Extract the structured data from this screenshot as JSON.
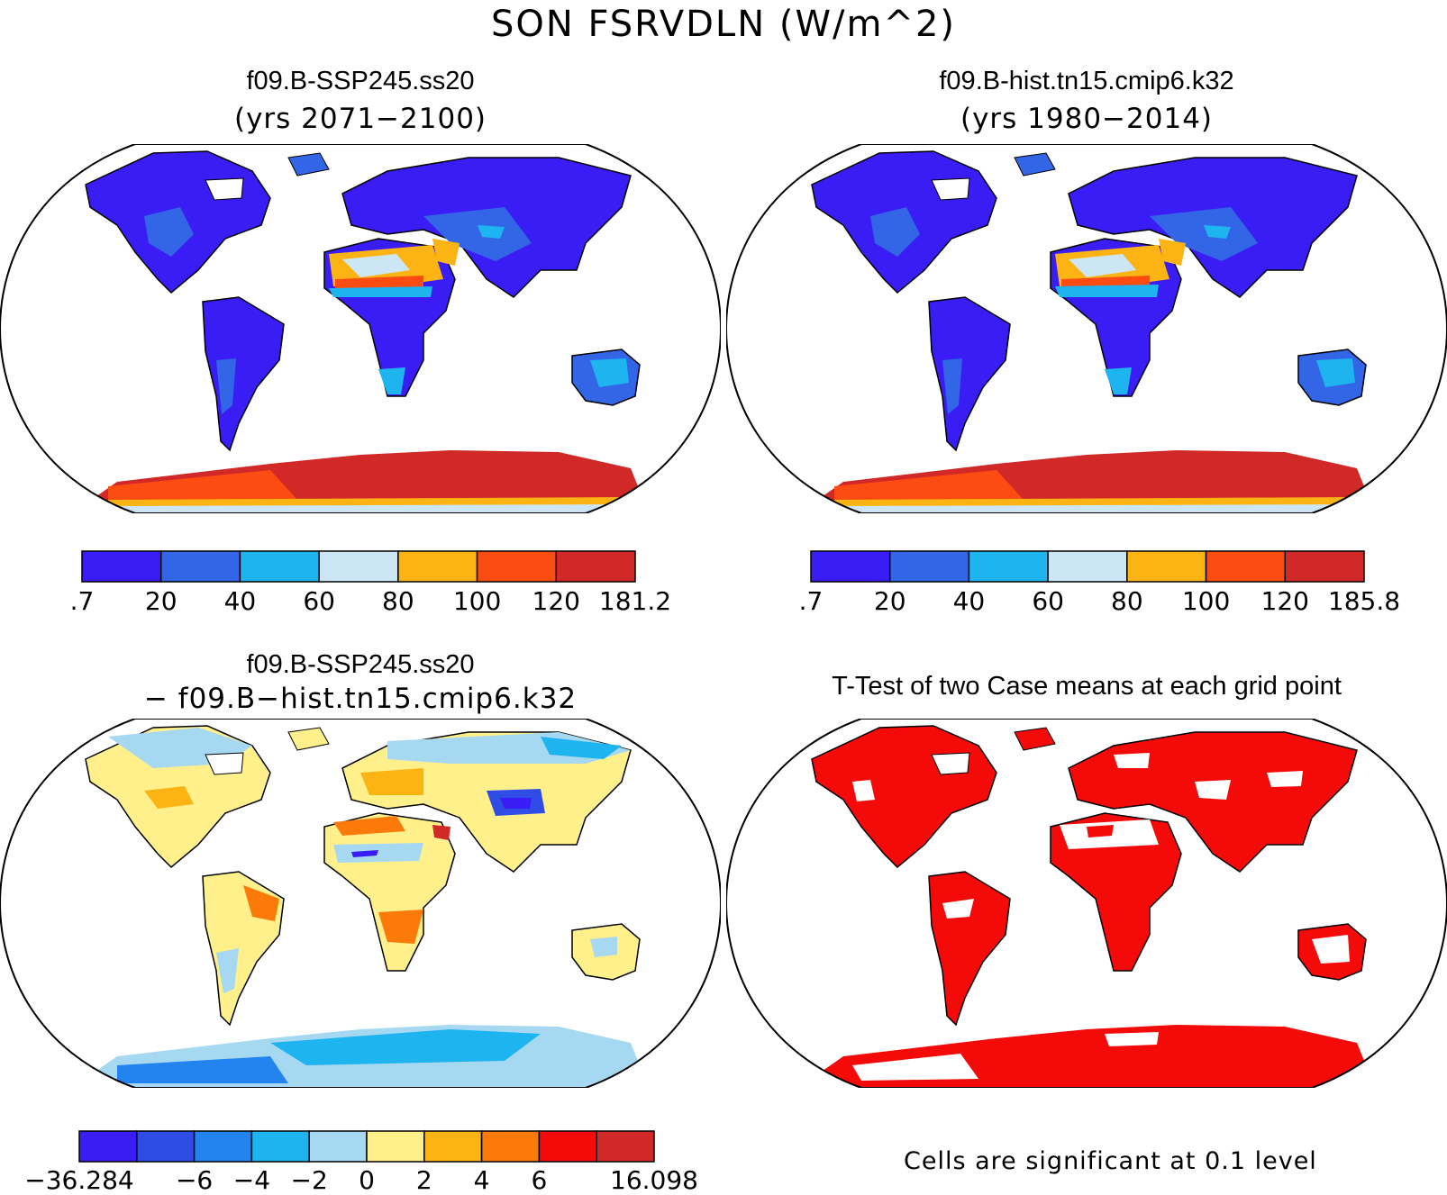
{
  "figure": {
    "title": "SON FSRVDLN (W/m^2)"
  },
  "panels": {
    "top_left": {
      "title": "f09.B-SSP245.ss20",
      "subtitle": "(yrs 2071−2100)",
      "colorbar": {
        "colors": [
          "#3a1cf5",
          "#3366e6",
          "#1eb4f0",
          "#cce6f5",
          "#fcb414",
          "#fc4c12",
          "#d12828"
        ],
        "tick_labels": [
          ".7",
          "20",
          "40",
          "60",
          "80",
          "100",
          "120",
          "181.2"
        ]
      }
    },
    "top_right": {
      "title": "f09.B-hist.tn15.cmip6.k32",
      "subtitle": "(yrs 1980−2014)",
      "colorbar": {
        "colors": [
          "#3a1cf5",
          "#3366e6",
          "#1eb4f0",
          "#cce6f5",
          "#fcb414",
          "#fc4c12",
          "#d12828"
        ],
        "tick_labels": [
          ".7",
          "20",
          "40",
          "60",
          "80",
          "100",
          "120",
          "185.8"
        ]
      }
    },
    "bottom_left": {
      "title": "f09.B-SSP245.ss20",
      "subtitle": "− f09.B−hist.tn15.cmip6.k32",
      "colorbar": {
        "colors": [
          "#3a1cf5",
          "#2f4ce6",
          "#2384f0",
          "#1eb4f0",
          "#a6d8f2",
          "#fff08c",
          "#fcb414",
          "#fc7a0a",
          "#f50a0a",
          "#d12828"
        ],
        "tick_labels": [
          "−36.284",
          "",
          "−6",
          "−4",
          "−2",
          "0",
          "2",
          "4",
          "6",
          "",
          "16.098"
        ]
      }
    },
    "bottom_right": {
      "title": "T-Test of two Case means at each grid point",
      "footnote": "Cells are significant at 0.1 level",
      "significant_color": "#f50a0a"
    }
  }
}
